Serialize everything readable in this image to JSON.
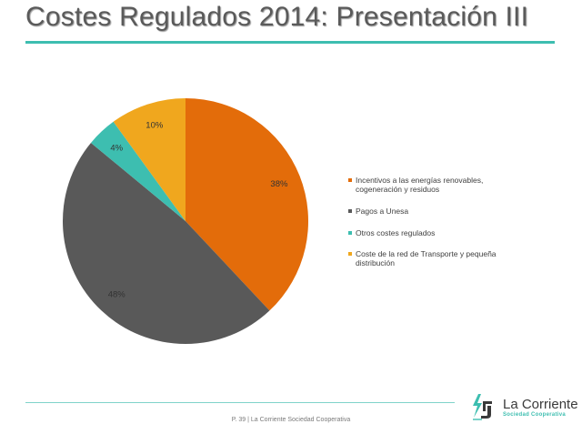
{
  "slide": {
    "title": "Costes Regulados 2014: Presentación III",
    "footer": "P. 39 | La Corriente Sociedad Cooperativa",
    "logo": {
      "name": "La Corriente",
      "subtitle": "Sociedad Cooperativa",
      "icon": "bolt-leaf-logo-icon"
    }
  },
  "colors": {
    "accent": "#3dbeb0",
    "title_text": "#5a5a5a"
  },
  "chart_data": {
    "type": "pie",
    "title": "",
    "start_angle_deg": 0,
    "direction": "clockwise",
    "legend_position": "right",
    "slices": [
      {
        "label": "Incentivos a las energías renovables, cogeneración y residuos",
        "value": 38,
        "display": "38%",
        "color": "#e36c0a"
      },
      {
        "label": "Pagos a Unesa",
        "value": 48,
        "display": "48%",
        "color": "#595959"
      },
      {
        "label": "Otros costes regulados",
        "value": 4,
        "display": "4%",
        "color": "#3dbeb0"
      },
      {
        "label": "Coste de la red de Transporte y pequeña distribución",
        "value": 10,
        "display": "10%",
        "color": "#f0a71e"
      }
    ]
  },
  "legend": {
    "items": [
      {
        "label": "Incentivos a las energías renovables, cogeneración y residuos",
        "color": "#e36c0a"
      },
      {
        "label": "Pagos a Unesa",
        "color": "#595959"
      },
      {
        "label": "Otros costes regulados",
        "color": "#3dbeb0"
      },
      {
        "label": "Coste de la red de Transporte y pequeña distribución",
        "color": "#f0a71e"
      }
    ]
  }
}
